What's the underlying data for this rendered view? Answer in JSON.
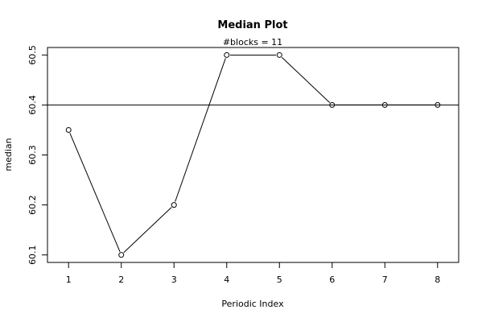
{
  "chart_data": {
    "type": "line",
    "title": "Median Plot",
    "subtitle": "#blocks =  11",
    "xlabel": "Periodic Index",
    "ylabel": "median",
    "x": [
      1,
      2,
      3,
      4,
      5,
      6,
      7,
      8
    ],
    "series": [
      {
        "values": [
          60.35,
          60.1,
          60.2,
          60.5,
          60.5,
          60.4,
          60.4,
          60.4
        ]
      }
    ],
    "reference_line_y": 60.4,
    "xlim": [
      0.6,
      8.4
    ],
    "ylim": [
      60.085,
      60.515
    ],
    "x_ticks": [
      1,
      2,
      3,
      4,
      5,
      6,
      7,
      8
    ],
    "y_ticks": [
      60.1,
      60.2,
      60.3,
      60.4,
      60.5
    ],
    "grid": false,
    "marker": "open-circle"
  }
}
